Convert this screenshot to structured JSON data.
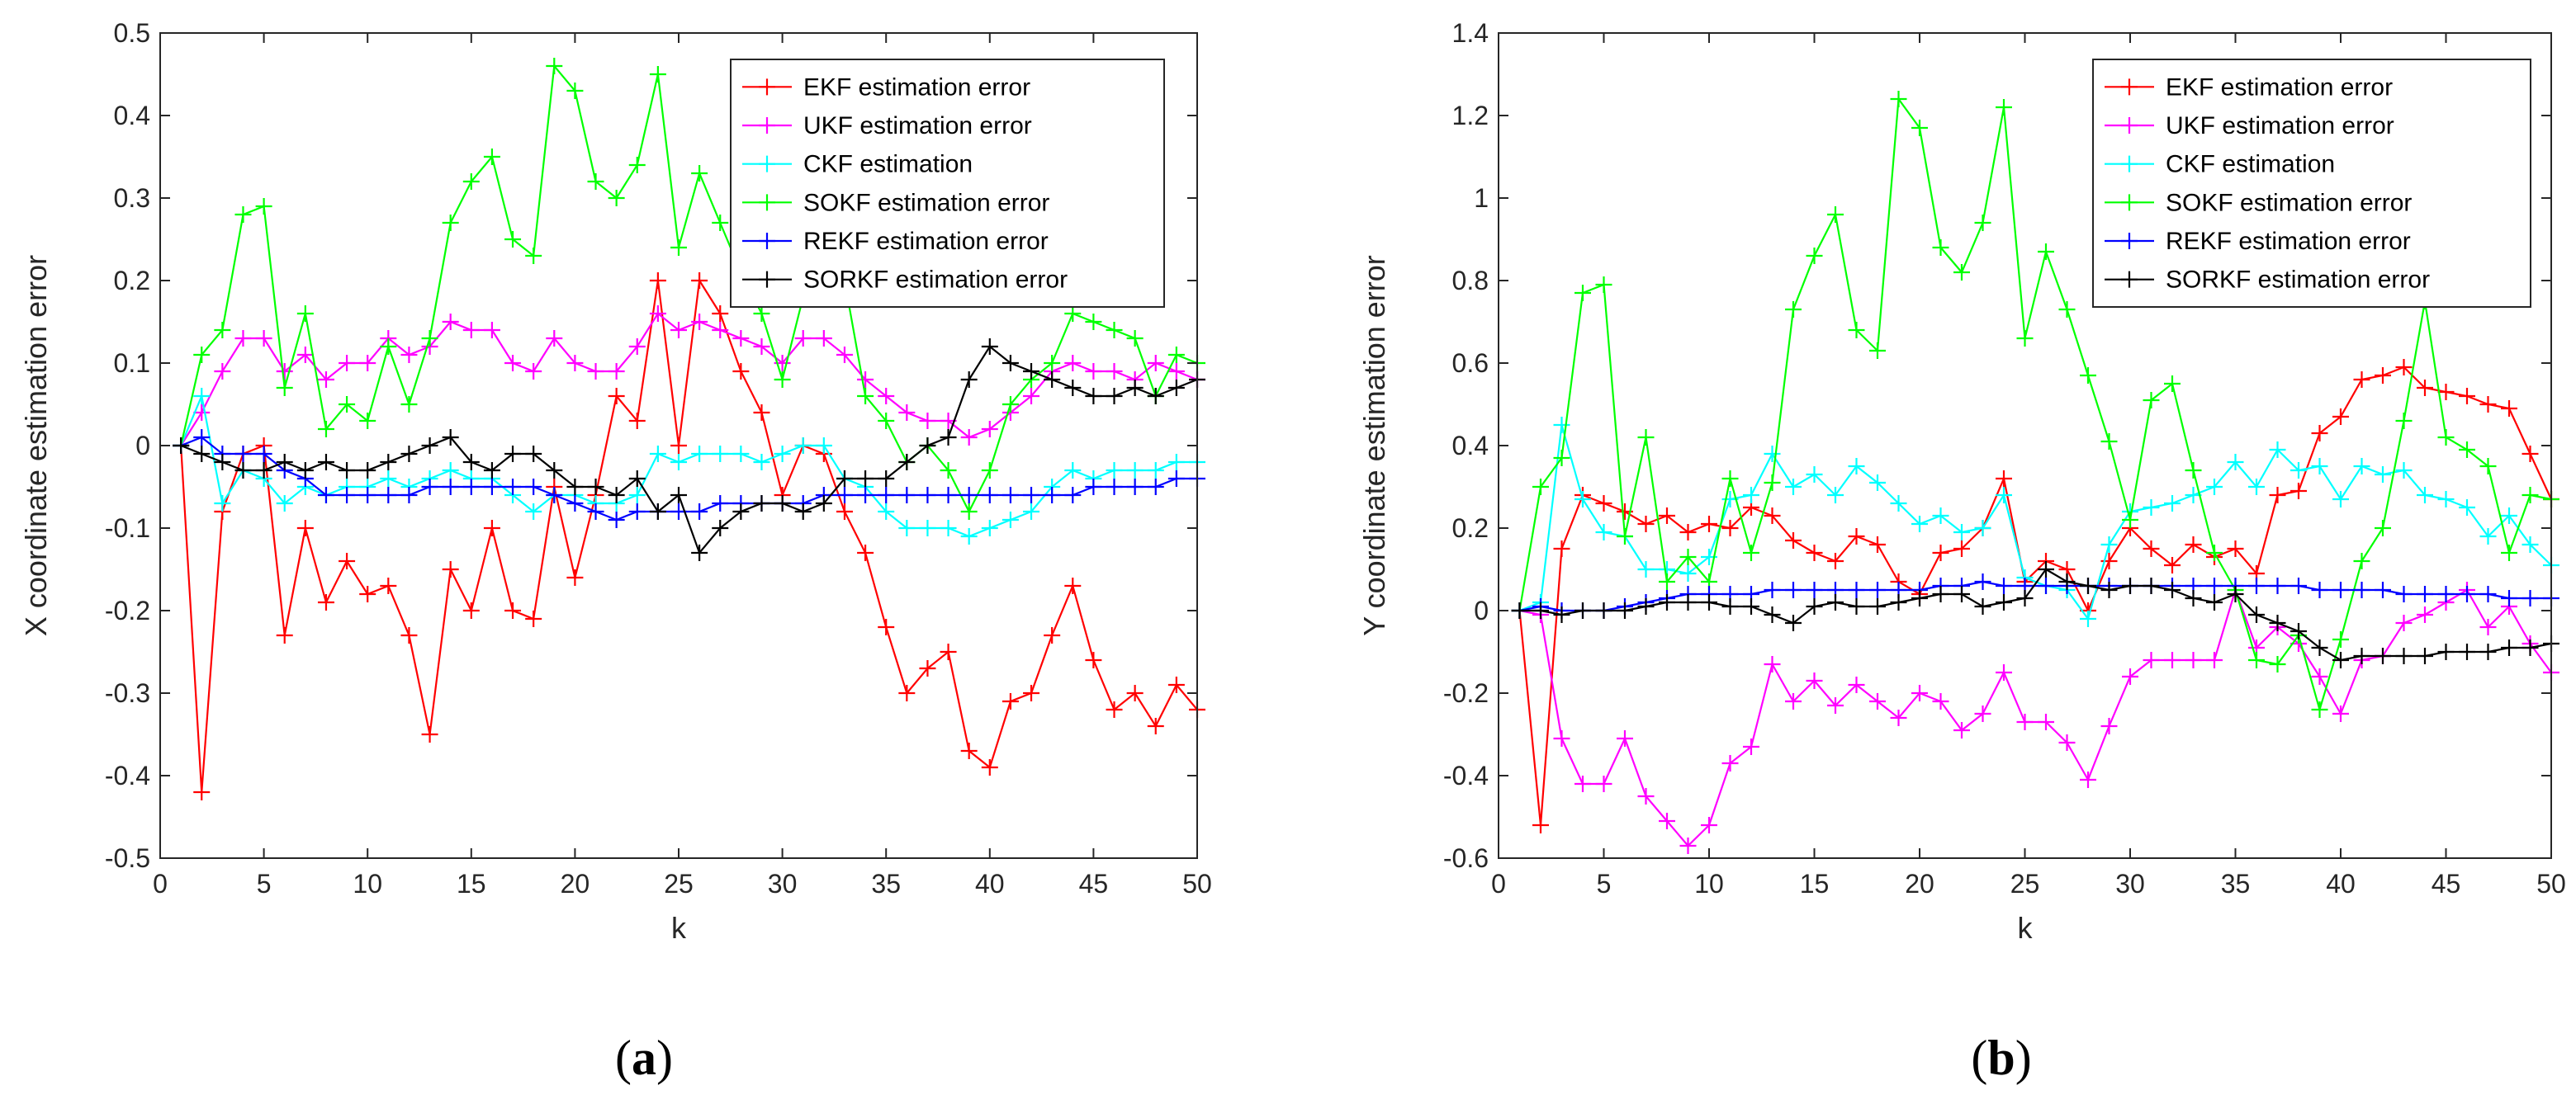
{
  "figure": {
    "panels": [
      {
        "label": "(a)",
        "label_paren_open": "(",
        "label_letter": "a",
        "label_paren_close": ")"
      },
      {
        "label": "(b)",
        "label_paren_open": "(",
        "label_letter": "b",
        "label_paren_close": ")"
      }
    ]
  },
  "chart_data": [
    {
      "type": "line",
      "title": "",
      "xlabel": "k",
      "ylabel": "X coordinate estimation error",
      "xlim": [
        0,
        50
      ],
      "ylim": [
        -0.5,
        0.5
      ],
      "xticks": [
        0,
        5,
        10,
        15,
        20,
        25,
        30,
        35,
        40,
        45,
        50
      ],
      "yticks": [
        -0.5,
        -0.4,
        -0.3,
        -0.2,
        -0.1,
        0,
        0.1,
        0.2,
        0.3,
        0.4,
        0.5
      ],
      "ytick_labels": [
        "-0.5",
        "-0.4",
        "-0.3",
        "-0.2",
        "-0.1",
        "0",
        "0.1",
        "0.2",
        "0.3",
        "0.4",
        "0.5"
      ],
      "marker": "+",
      "grid": false,
      "legend_position": "top-right",
      "x": [
        1,
        2,
        3,
        4,
        5,
        6,
        7,
        8,
        9,
        10,
        11,
        12,
        13,
        14,
        15,
        16,
        17,
        18,
        19,
        20,
        21,
        22,
        23,
        24,
        25,
        26,
        27,
        28,
        29,
        30,
        31,
        32,
        33,
        34,
        35,
        36,
        37,
        38,
        39,
        40,
        41,
        42,
        43,
        44,
        45,
        46,
        47,
        48,
        49,
        50
      ],
      "series": [
        {
          "name": "EKF estimation error",
          "color": "#ff0000",
          "values": [
            0,
            -0.42,
            -0.08,
            -0.01,
            0,
            -0.23,
            -0.1,
            -0.19,
            -0.14,
            -0.18,
            -0.17,
            -0.23,
            -0.35,
            -0.15,
            -0.2,
            -0.1,
            -0.2,
            -0.21,
            -0.05,
            -0.16,
            -0.06,
            0.06,
            0.03,
            0.2,
            0,
            0.2,
            0.16,
            0.09,
            0.04,
            -0.06,
            0,
            -0.01,
            -0.08,
            -0.13,
            -0.22,
            -0.3,
            -0.27,
            -0.25,
            -0.37,
            -0.39,
            -0.31,
            -0.3,
            -0.23,
            -0.17,
            -0.26,
            -0.32,
            -0.3,
            -0.34,
            -0.29,
            -0.32
          ]
        },
        {
          "name": "UKF estimation error",
          "color": "#ff00ff",
          "values": [
            0,
            0.04,
            0.09,
            0.13,
            0.13,
            0.09,
            0.11,
            0.08,
            0.1,
            0.1,
            0.13,
            0.11,
            0.12,
            0.15,
            0.14,
            0.14,
            0.1,
            0.09,
            0.13,
            0.1,
            0.09,
            0.09,
            0.12,
            0.16,
            0.14,
            0.15,
            0.14,
            0.13,
            0.12,
            0.1,
            0.13,
            0.13,
            0.11,
            0.08,
            0.06,
            0.04,
            0.03,
            0.03,
            0.01,
            0.02,
            0.04,
            0.06,
            0.09,
            0.1,
            0.09,
            0.09,
            0.08,
            0.1,
            0.09,
            0.08
          ]
        },
        {
          "name": "CKF estimation",
          "color": "#00ffff",
          "values": [
            0,
            0.06,
            -0.07,
            -0.03,
            -0.04,
            -0.07,
            -0.05,
            -0.06,
            -0.05,
            -0.05,
            -0.04,
            -0.05,
            -0.04,
            -0.03,
            -0.04,
            -0.04,
            -0.06,
            -0.08,
            -0.06,
            -0.06,
            -0.07,
            -0.07,
            -0.06,
            -0.01,
            -0.02,
            -0.01,
            -0.01,
            -0.01,
            -0.02,
            -0.01,
            0,
            0,
            -0.04,
            -0.05,
            -0.08,
            -0.1,
            -0.1,
            -0.1,
            -0.11,
            -0.1,
            -0.09,
            -0.08,
            -0.05,
            -0.03,
            -0.04,
            -0.03,
            -0.03,
            -0.03,
            -0.02,
            -0.02
          ]
        },
        {
          "name": "SOKF estimation error",
          "color": "#00ff00",
          "values": [
            0,
            0.11,
            0.14,
            0.28,
            0.29,
            0.07,
            0.16,
            0.02,
            0.05,
            0.03,
            0.12,
            0.05,
            0.13,
            0.27,
            0.32,
            0.35,
            0.25,
            0.23,
            0.46,
            0.43,
            0.32,
            0.3,
            0.34,
            0.45,
            0.24,
            0.33,
            0.27,
            0.21,
            0.16,
            0.08,
            0.18,
            0.28,
            0.2,
            0.06,
            0.03,
            -0.02,
            0,
            -0.03,
            -0.08,
            -0.03,
            0.05,
            0.08,
            0.1,
            0.16,
            0.15,
            0.14,
            0.13,
            0.06,
            0.11,
            0.1
          ]
        },
        {
          "name": "REKF estimation error",
          "color": "#0000ff",
          "values": [
            0,
            0.01,
            -0.01,
            -0.01,
            -0.01,
            -0.03,
            -0.04,
            -0.06,
            -0.06,
            -0.06,
            -0.06,
            -0.06,
            -0.05,
            -0.05,
            -0.05,
            -0.05,
            -0.05,
            -0.05,
            -0.06,
            -0.07,
            -0.08,
            -0.09,
            -0.08,
            -0.08,
            -0.08,
            -0.08,
            -0.07,
            -0.07,
            -0.07,
            -0.07,
            -0.07,
            -0.06,
            -0.06,
            -0.06,
            -0.06,
            -0.06,
            -0.06,
            -0.06,
            -0.06,
            -0.06,
            -0.06,
            -0.06,
            -0.06,
            -0.06,
            -0.05,
            -0.05,
            -0.05,
            -0.05,
            -0.04,
            -0.04
          ]
        },
        {
          "name": "SORKF estimation error",
          "color": "#000000",
          "values": [
            0,
            -0.01,
            -0.02,
            -0.03,
            -0.03,
            -0.02,
            -0.03,
            -0.02,
            -0.03,
            -0.03,
            -0.02,
            -0.01,
            0,
            0.01,
            -0.02,
            -0.03,
            -0.01,
            -0.01,
            -0.03,
            -0.05,
            -0.05,
            -0.06,
            -0.04,
            -0.08,
            -0.06,
            -0.13,
            -0.1,
            -0.08,
            -0.07,
            -0.07,
            -0.08,
            -0.07,
            -0.04,
            -0.04,
            -0.04,
            -0.02,
            0,
            0.01,
            0.08,
            0.12,
            0.1,
            0.09,
            0.08,
            0.07,
            0.06,
            0.06,
            0.07,
            0.06,
            0.07,
            0.08
          ]
        }
      ]
    },
    {
      "type": "line",
      "title": "",
      "xlabel": "k",
      "ylabel": "Y coordinate estimation error",
      "xlim": [
        0,
        50
      ],
      "ylim": [
        -0.6,
        1.4
      ],
      "xticks": [
        0,
        5,
        10,
        15,
        20,
        25,
        30,
        35,
        40,
        45,
        50
      ],
      "yticks": [
        -0.6,
        -0.4,
        -0.2,
        0,
        0.2,
        0.4,
        0.6,
        0.8,
        1,
        1.2,
        1.4
      ],
      "ytick_labels": [
        "-0.6",
        "-0.4",
        "-0.2",
        "0",
        "0.2",
        "0.4",
        "0.6",
        "0.8",
        "1",
        "1.2",
        "1.4"
      ],
      "marker": "+",
      "grid": false,
      "legend_position": "top-right",
      "x": [
        1,
        2,
        3,
        4,
        5,
        6,
        7,
        8,
        9,
        10,
        11,
        12,
        13,
        14,
        15,
        16,
        17,
        18,
        19,
        20,
        21,
        22,
        23,
        24,
        25,
        26,
        27,
        28,
        29,
        30,
        31,
        32,
        33,
        34,
        35,
        36,
        37,
        38,
        39,
        40,
        41,
        42,
        43,
        44,
        45,
        46,
        47,
        48,
        49,
        50
      ],
      "series": [
        {
          "name": "EKF estimation error",
          "color": "#ff0000",
          "values": [
            0,
            -0.52,
            0.15,
            0.28,
            0.26,
            0.24,
            0.21,
            0.23,
            0.19,
            0.21,
            0.2,
            0.25,
            0.23,
            0.17,
            0.14,
            0.12,
            0.18,
            0.16,
            0.07,
            0.04,
            0.14,
            0.15,
            0.2,
            0.32,
            0.07,
            0.12,
            0.1,
            0,
            0.12,
            0.2,
            0.15,
            0.11,
            0.16,
            0.13,
            0.15,
            0.09,
            0.28,
            0.29,
            0.43,
            0.47,
            0.56,
            0.57,
            0.59,
            0.54,
            0.53,
            0.52,
            0.5,
            0.49,
            0.38,
            0.27
          ]
        },
        {
          "name": "UKF estimation error",
          "color": "#ff00ff",
          "values": [
            0,
            -0.01,
            -0.31,
            -0.42,
            -0.42,
            -0.31,
            -0.45,
            -0.51,
            -0.57,
            -0.52,
            -0.37,
            -0.33,
            -0.13,
            -0.22,
            -0.17,
            -0.23,
            -0.18,
            -0.22,
            -0.26,
            -0.2,
            -0.22,
            -0.29,
            -0.25,
            -0.15,
            -0.27,
            -0.27,
            -0.32,
            -0.41,
            -0.28,
            -0.16,
            -0.12,
            -0.12,
            -0.12,
            -0.12,
            0.05,
            -0.09,
            -0.04,
            -0.08,
            -0.16,
            -0.25,
            -0.12,
            -0.11,
            -0.03,
            -0.01,
            0.02,
            0.05,
            -0.04,
            0.01,
            -0.08,
            -0.15
          ]
        },
        {
          "name": "CKF estimation",
          "color": "#00ffff",
          "values": [
            0,
            0.02,
            0.45,
            0.27,
            0.19,
            0.18,
            0.1,
            0.1,
            0.09,
            0.13,
            0.27,
            0.28,
            0.38,
            0.3,
            0.33,
            0.28,
            0.35,
            0.31,
            0.26,
            0.21,
            0.23,
            0.19,
            0.2,
            0.28,
            0.08,
            0.06,
            0.05,
            -0.02,
            0.16,
            0.24,
            0.25,
            0.26,
            0.28,
            0.3,
            0.36,
            0.3,
            0.39,
            0.34,
            0.35,
            0.27,
            0.35,
            0.33,
            0.34,
            0.28,
            0.27,
            0.25,
            0.18,
            0.23,
            0.16,
            0.11
          ]
        },
        {
          "name": "SOKF estimation error",
          "color": "#00ff00",
          "values": [
            0,
            0.3,
            0.37,
            0.77,
            0.79,
            0.18,
            0.42,
            0.07,
            0.13,
            0.07,
            0.32,
            0.14,
            0.31,
            0.73,
            0.86,
            0.96,
            0.68,
            0.63,
            1.24,
            1.17,
            0.88,
            0.82,
            0.94,
            1.22,
            0.66,
            0.87,
            0.73,
            0.57,
            0.41,
            0.22,
            0.51,
            0.55,
            0.34,
            0.14,
            0.05,
            -0.12,
            -0.13,
            -0.06,
            -0.24,
            -0.07,
            0.12,
            0.2,
            0.46,
            0.75,
            0.42,
            0.39,
            0.35,
            0.14,
            0.28,
            0.27
          ]
        },
        {
          "name": "REKF estimation error",
          "color": "#0000ff",
          "values": [
            0,
            0.01,
            0,
            0,
            0,
            0.01,
            0.02,
            0.03,
            0.04,
            0.04,
            0.04,
            0.04,
            0.05,
            0.05,
            0.05,
            0.05,
            0.05,
            0.05,
            0.05,
            0.05,
            0.06,
            0.06,
            0.07,
            0.06,
            0.06,
            0.06,
            0.06,
            0.06,
            0.06,
            0.06,
            0.06,
            0.06,
            0.06,
            0.06,
            0.06,
            0.06,
            0.06,
            0.06,
            0.05,
            0.05,
            0.05,
            0.05,
            0.04,
            0.04,
            0.04,
            0.04,
            0.04,
            0.03,
            0.03,
            0.03
          ]
        },
        {
          "name": "SORKF estimation error",
          "color": "#000000",
          "values": [
            0,
            0,
            -0.01,
            0,
            0,
            0,
            0.01,
            0.02,
            0.02,
            0.02,
            0.01,
            0.01,
            -0.01,
            -0.03,
            0.01,
            0.02,
            0.01,
            0.01,
            0.02,
            0.03,
            0.04,
            0.04,
            0.01,
            0.02,
            0.03,
            0.1,
            0.07,
            0.06,
            0.05,
            0.06,
            0.06,
            0.05,
            0.03,
            0.02,
            0.04,
            -0.01,
            -0.03,
            -0.05,
            -0.09,
            -0.12,
            -0.11,
            -0.11,
            -0.11,
            -0.11,
            -0.1,
            -0.1,
            -0.1,
            -0.09,
            -0.09,
            -0.08
          ]
        }
      ]
    }
  ]
}
